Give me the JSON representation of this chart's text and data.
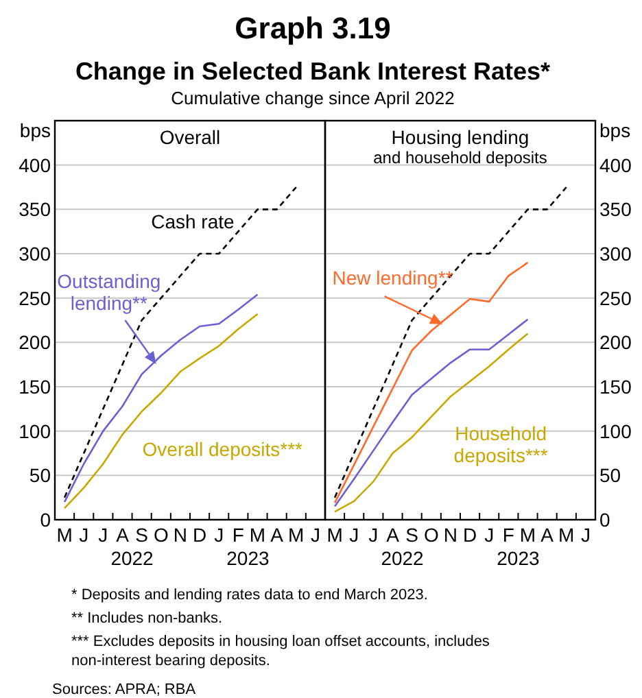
{
  "chart_data": [
    {
      "type": "line",
      "title": "Overall",
      "ylabel": "bps",
      "annotations": [
        "Graph 3.19",
        "Change in Selected Bank Interest Rates*",
        "Cumulative change since April 2022",
        "2022",
        "2023"
      ],
      "categories": [
        "M",
        "J",
        "J",
        "A",
        "S",
        "O",
        "N",
        "D",
        "J",
        "F",
        "M",
        "A",
        "M",
        "J"
      ],
      "series": [
        {
          "name": "Cash rate",
          "color": "#000000",
          "line_style": "dashed",
          "values": [
            25,
            75,
            125,
            175,
            225,
            250,
            275,
            300,
            300,
            325,
            350,
            350,
            375,
            null
          ]
        },
        {
          "name": "Outstanding\nlending**",
          "color": "#6b5fd4",
          "values": [
            20,
            63,
            100,
            128,
            164,
            185,
            203,
            218,
            221,
            237,
            254,
            null,
            null,
            null
          ]
        },
        {
          "name": "Overall deposits***",
          "color": "#c8a800",
          "values": [
            13,
            36,
            63,
            96,
            122,
            143,
            167,
            182,
            196,
            215,
            232,
            null,
            null,
            null
          ]
        }
      ],
      "ylim": [
        0,
        450
      ],
      "yticks": [
        0,
        50,
        100,
        150,
        200,
        250,
        300,
        350,
        400
      ],
      "grid": "y",
      "legend": false
    },
    {
      "type": "line",
      "title": "Housing lending\nand household deposits",
      "y2label": "bps",
      "annotations": [
        "2022",
        "2023",
        "*  Deposits and lending rates data to end March 2023.",
        "**  Includes non-banks.",
        "***  Excludes deposits in housing loan offset accounts, includes\nnon-interest bearing deposits.",
        "Sources: APRA; RBA"
      ],
      "categories": [
        "M",
        "J",
        "J",
        "A",
        "S",
        "O",
        "N",
        "D",
        "J",
        "F",
        "M",
        "A",
        "M",
        "J"
      ],
      "series": [
        {
          "color": "#000000",
          "line_style": "dashed",
          "axis": "y2",
          "values": [
            25,
            75,
            125,
            175,
            225,
            250,
            275,
            300,
            300,
            325,
            350,
            350,
            375,
            null
          ]
        },
        {
          "name": "New lending**",
          "color": "#ff6a2a",
          "axis": "y2",
          "values": [
            19,
            62,
            105,
            148,
            191,
            213,
            231,
            249,
            246,
            275,
            290,
            null,
            null,
            null
          ]
        },
        {
          "color": "#6b5fd4",
          "axis": "y2",
          "values": [
            15,
            46,
            78,
            110,
            141,
            159,
            177,
            192,
            192,
            209,
            226,
            null,
            null,
            null
          ]
        },
        {
          "name": "Household\ndeposits***",
          "color": "#c8a800",
          "axis": "y2",
          "values": [
            9,
            21,
            43,
            75,
            93,
            116,
            139,
            156,
            173,
            192,
            210,
            null,
            null,
            null
          ]
        }
      ],
      "y2lim": [
        0,
        450
      ],
      "y2ticks": [
        0,
        50,
        100,
        150,
        200,
        250,
        300,
        350,
        400
      ],
      "grid": "y",
      "legend": false
    }
  ]
}
